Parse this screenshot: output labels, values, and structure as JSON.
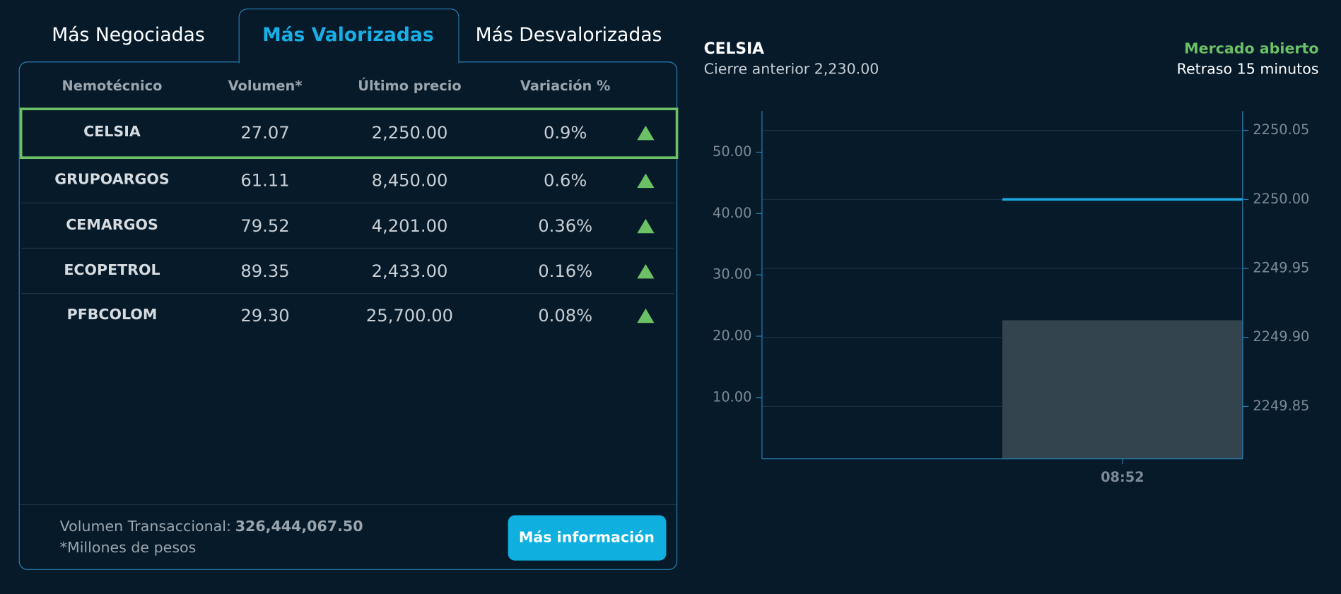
{
  "tabs": {
    "items": [
      "Más Negociadas",
      "Más Valorizadas",
      "Más Desvalorizadas"
    ],
    "active": 1
  },
  "table": {
    "headers": [
      "Nemotécnico",
      "Volumen*",
      "Último precio",
      "Variación %"
    ],
    "rows": [
      [
        "CELSIA",
        "27.07",
        "2,250.00",
        "0.9%"
      ],
      [
        "GRUPOARGOS",
        "61.11",
        "8,450.00",
        "0.6%"
      ],
      [
        "CEMARGOS",
        "79.52",
        "4,201.00",
        "0.36%"
      ],
      [
        "ECOPETROL",
        "89.35",
        "2,433.00",
        "0.16%"
      ],
      [
        "PFBCOLOM",
        "29.30",
        "25,700.00",
        "0.08%"
      ]
    ],
    "selected": 0
  },
  "footer": {
    "volume_label": "Volumen Transaccional:",
    "volume_value": "326,444,067.50",
    "note": "*Millones de pesos",
    "button": "Más información"
  },
  "chart": {
    "title": "CELSIA",
    "subtitle": "Cierre anterior 2,230.00",
    "status": "Mercado abierto",
    "delay": "Retraso 15 minutos"
  },
  "chart_data": {
    "type": "bar",
    "categories": [
      null,
      "08:52"
    ],
    "series": [
      {
        "color": "#34444f",
        "values": [
          null,
          22.6
        ]
      },
      {
        "type": "line",
        "color": "#1aa9e0",
        "axis": "y2",
        "values": [
          null,
          2250
        ]
      }
    ],
    "ylim": [
      0,
      56.7
    ],
    "yticks": [
      {
        "value": 10,
        "label": "10.00"
      },
      {
        "value": 20,
        "label": "20.00"
      },
      {
        "value": 30,
        "label": "30.00"
      },
      {
        "value": 40,
        "label": "40.00"
      },
      {
        "value": 50,
        "label": "50.00"
      }
    ],
    "y2lim": [
      2249.812,
      2250.064
    ],
    "y2ticks": [
      {
        "value": 2249.85,
        "label": "2249.85"
      },
      {
        "value": 2249.9,
        "label": "2249.90"
      },
      2249.95,
      {
        "value": 2250,
        "label": "2250.00"
      },
      2250.05
    ],
    "grid": true
  }
}
